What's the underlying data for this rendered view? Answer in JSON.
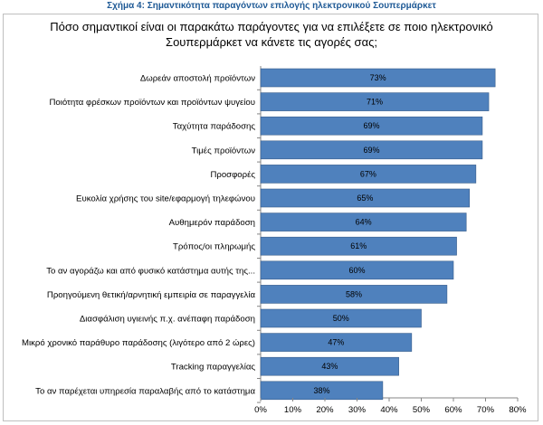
{
  "figure_caption": "Σχήμα 4: Σημαντικότητα παραγόντων επιλογής ηλεκτρονικού Σουπερμάρκετ",
  "chart_data": {
    "type": "bar",
    "orientation": "horizontal",
    "title_lines": [
      "Πόσο σημαντικοί είναι οι παρακάτω παράγοντες για να επιλέξετε σε ποιο ηλεκτρονικό",
      "Σουπερμάρκετ να κάνετε τις αγορές σας;"
    ],
    "categories": [
      "Δωρεάν αποστολή προϊόντων",
      "Ποιότητα φρέσκων προϊόντων και προϊόντων ψυγείου",
      "Ταχύτητα παράδοσης",
      "Τιμές προϊόντων",
      "Προσφορές",
      "Ευκολία χρήσης του site/εφαρμογή τηλεφώνου",
      "Αυθημερόν παράδοση",
      "Τρόπος/οι πληρωμής",
      "Το αν αγοράζω και από φυσικό κατάστημα αυτής της...",
      "Προηγούμενη θετική/αρνητική εμπειρία σε παραγγελία",
      "Διασφάλιση υγιεινής π.χ. ανέπαφη παράδοση",
      "Μικρό χρονικό παράθυρο παράδοσης (λιγότερο από 2 ώρες)",
      "Tracking παραγγελίας",
      "Το αν παρέχεται υπηρεσία παραλαβής από το κατάστημα"
    ],
    "values": [
      73,
      71,
      69,
      69,
      67,
      65,
      64,
      61,
      60,
      58,
      50,
      47,
      43,
      38
    ],
    "value_labels": [
      "73%",
      "71%",
      "69%",
      "69%",
      "67%",
      "65%",
      "64%",
      "61%",
      "60%",
      "58%",
      "50%",
      "47%",
      "43%",
      "38%"
    ],
    "xlim": [
      0,
      80
    ],
    "x_ticks": [
      "0%",
      "10%",
      "20%",
      "30%",
      "40%",
      "50%",
      "60%",
      "70%",
      "80%"
    ],
    "bar_color": "#4f81bd",
    "bar_edge_color": "#385d8a",
    "grid": false,
    "legend": "none"
  }
}
